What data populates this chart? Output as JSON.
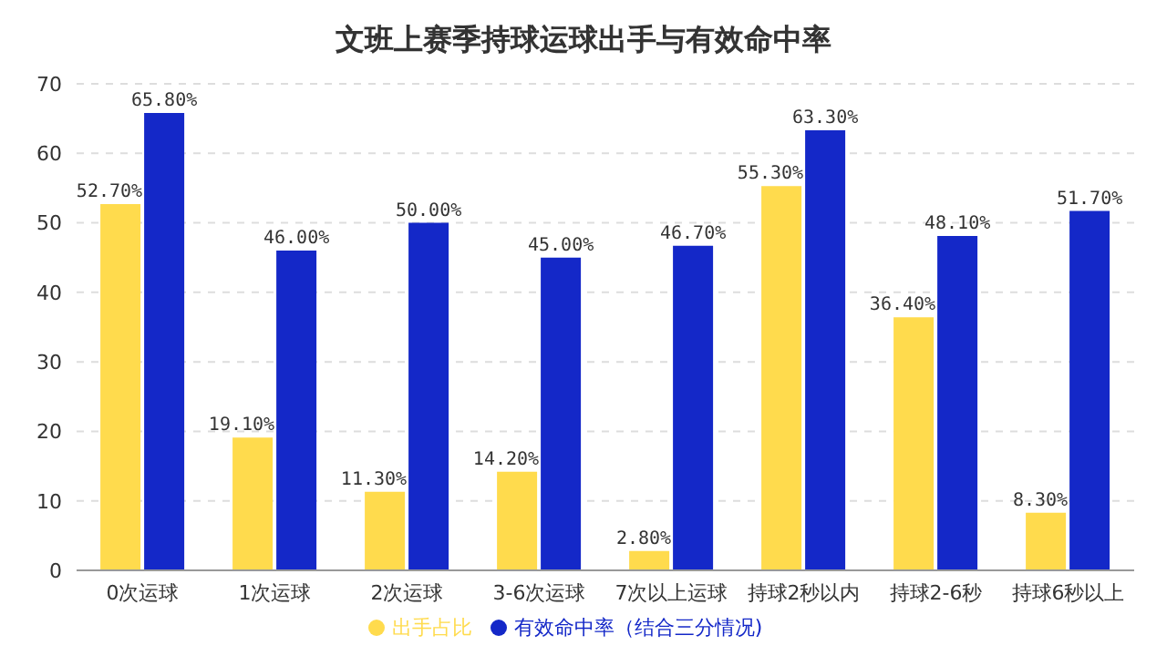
{
  "chart_data": {
    "type": "bar",
    "title": "文班上赛季持球运球出手与有效命中率",
    "categories": [
      "0次运球",
      "1次运球",
      "2次运球",
      "3-6次运球",
      "7次以上运球",
      "持球2秒以内",
      "持球2-6秒",
      "持球6秒以上"
    ],
    "series": [
      {
        "name": "出手占比",
        "color": "#ffdb4d",
        "values": [
          52.7,
          19.1,
          11.3,
          14.2,
          2.8,
          55.3,
          36.4,
          8.3
        ],
        "value_labels": [
          "52.70%",
          "19.10%",
          "11.30%",
          "14.20%",
          "2.80%",
          "55.30%",
          "36.40%",
          "8.30%"
        ]
      },
      {
        "name": "有效命中率（结合三分情况)",
        "color": "#1428c8",
        "values": [
          65.8,
          46.0,
          50.0,
          45.0,
          46.7,
          63.3,
          48.1,
          51.7
        ],
        "value_labels": [
          "65.80%",
          "46.00%",
          "50.00%",
          "45.00%",
          "46.70%",
          "63.30%",
          "48.10%",
          "51.70%"
        ]
      }
    ],
    "ylim": [
      0,
      70
    ],
    "yticks": [
      0,
      10,
      20,
      30,
      40,
      50,
      60,
      70
    ],
    "grid": "y",
    "legend": "bottom"
  }
}
